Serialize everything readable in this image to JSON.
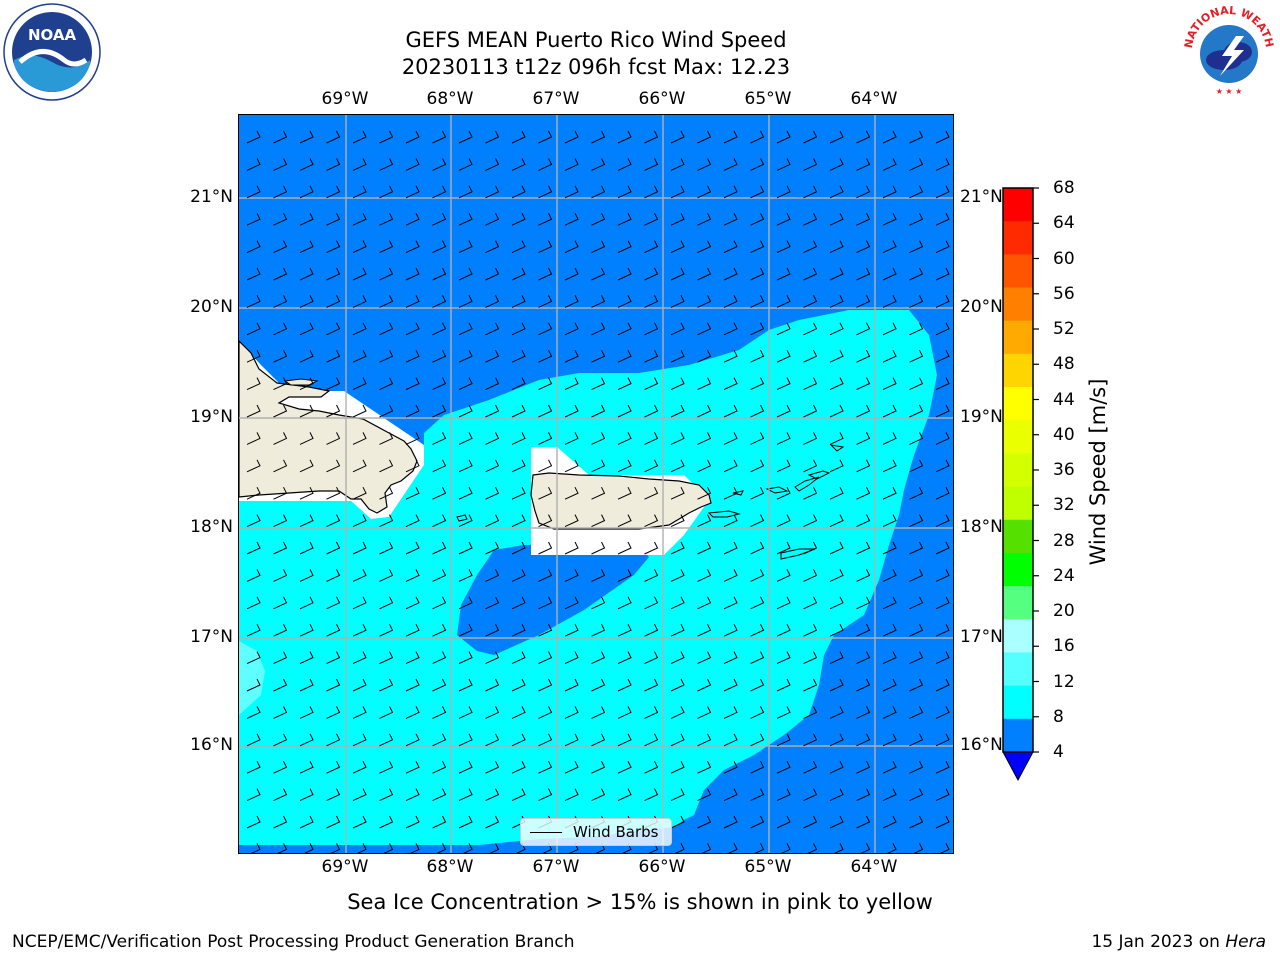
{
  "header": {
    "title_line1": "GEFS MEAN Puerto Rico Wind Speed",
    "title_line2": "20230113 t12z 096h fcst   Max: 12.23"
  },
  "map": {
    "lon_labels": [
      "69°W",
      "68°W",
      "67°W",
      "66°W",
      "65°W",
      "64°W"
    ],
    "lat_labels": [
      "21°N",
      "20°N",
      "19°N",
      "18°N",
      "17°N",
      "16°N"
    ],
    "legend_label": "Wind Barbs",
    "colors": {
      "ocean_low": "#0080ff",
      "ocean_mid": "#00ffff",
      "ocean_light": "#60ffff",
      "land": "#efecdc",
      "grid": "#b0b0b0"
    }
  },
  "colorbar": {
    "title": "Wind Speed [m/s]",
    "ticks": [
      "68",
      "64",
      "60",
      "56",
      "52",
      "48",
      "44",
      "40",
      "36",
      "32",
      "28",
      "24",
      "20",
      "16",
      "12",
      "8",
      "4"
    ],
    "colors_top_to_bottom": [
      "#ff0000",
      "#ff2a00",
      "#ff5500",
      "#ff8000",
      "#ffaa00",
      "#ffd500",
      "#ffff00",
      "#eaff00",
      "#d4ff00",
      "#bfff00",
      "#55e000",
      "#00ff00",
      "#55ff80",
      "#aaffff",
      "#55ffff",
      "#00ffff",
      "#0080ff"
    ],
    "extend_color": "#0000ff"
  },
  "footer": {
    "note": "Sea Ice Concentration > 15% is shown in pink to yellow",
    "left": "NCEP/EMC/Verification Post Processing Product Generation Branch",
    "right_prefix": "15 Jan 2023 on ",
    "right_host": "Hera"
  },
  "logos": {
    "noaa_text": "NOAA",
    "nws_text": "NATIONAL WEATHER SERVICE"
  }
}
